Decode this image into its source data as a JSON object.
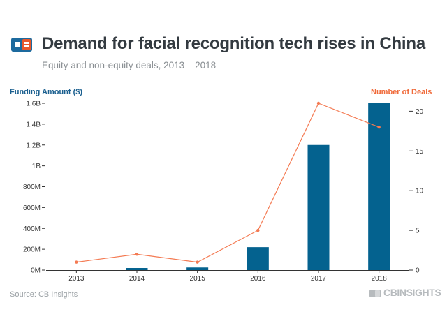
{
  "header": {
    "title": "Demand for facial recognition tech rises in China",
    "subtitle": "Equity and non-equity deals, 2013 – 2018"
  },
  "axis_labels": {
    "left": "Funding Amount ($)",
    "right": "Number of Deals"
  },
  "footer": {
    "source": "Source: CB Insights",
    "brand": "CBINSIGHTS"
  },
  "colors": {
    "bar": "#04628f",
    "line": "#f47a52",
    "title": "#333a40",
    "left_axis_label": "#1a5f8f",
    "right_axis_label": "#f06a3a"
  },
  "chart_data": {
    "type": "bar",
    "title": "Demand for facial recognition tech rises in China",
    "subtitle": "Equity and non-equity deals, 2013 – 2018",
    "categories": [
      "2013",
      "2014",
      "2015",
      "2016",
      "2017",
      "2018"
    ],
    "series": [
      {
        "name": "Funding Amount ($)",
        "type": "bar",
        "axis": "left",
        "values": [
          0,
          20000000,
          25000000,
          220000000,
          1200000000,
          1600000000
        ]
      },
      {
        "name": "Number of Deals",
        "type": "line",
        "axis": "right",
        "values": [
          1,
          2,
          1,
          5,
          21,
          18
        ]
      }
    ],
    "y_left": {
      "label": "Funding Amount ($)",
      "range": [
        0,
        1600000000
      ],
      "ticks": [
        0,
        200000000,
        400000000,
        600000000,
        800000000,
        1000000000,
        1200000000,
        1400000000,
        1600000000
      ],
      "tick_labels": [
        "0M",
        "200M",
        "400M",
        "600M",
        "800M",
        "1B",
        "1.2B",
        "1.4B",
        "1.6B"
      ]
    },
    "y_right": {
      "label": "Number of Deals",
      "range": [
        0,
        21
      ],
      "ticks": [
        0,
        5,
        10,
        15,
        20
      ],
      "tick_labels": [
        "0",
        "5",
        "10",
        "15",
        "20"
      ]
    },
    "grid": false,
    "legend": "none"
  }
}
